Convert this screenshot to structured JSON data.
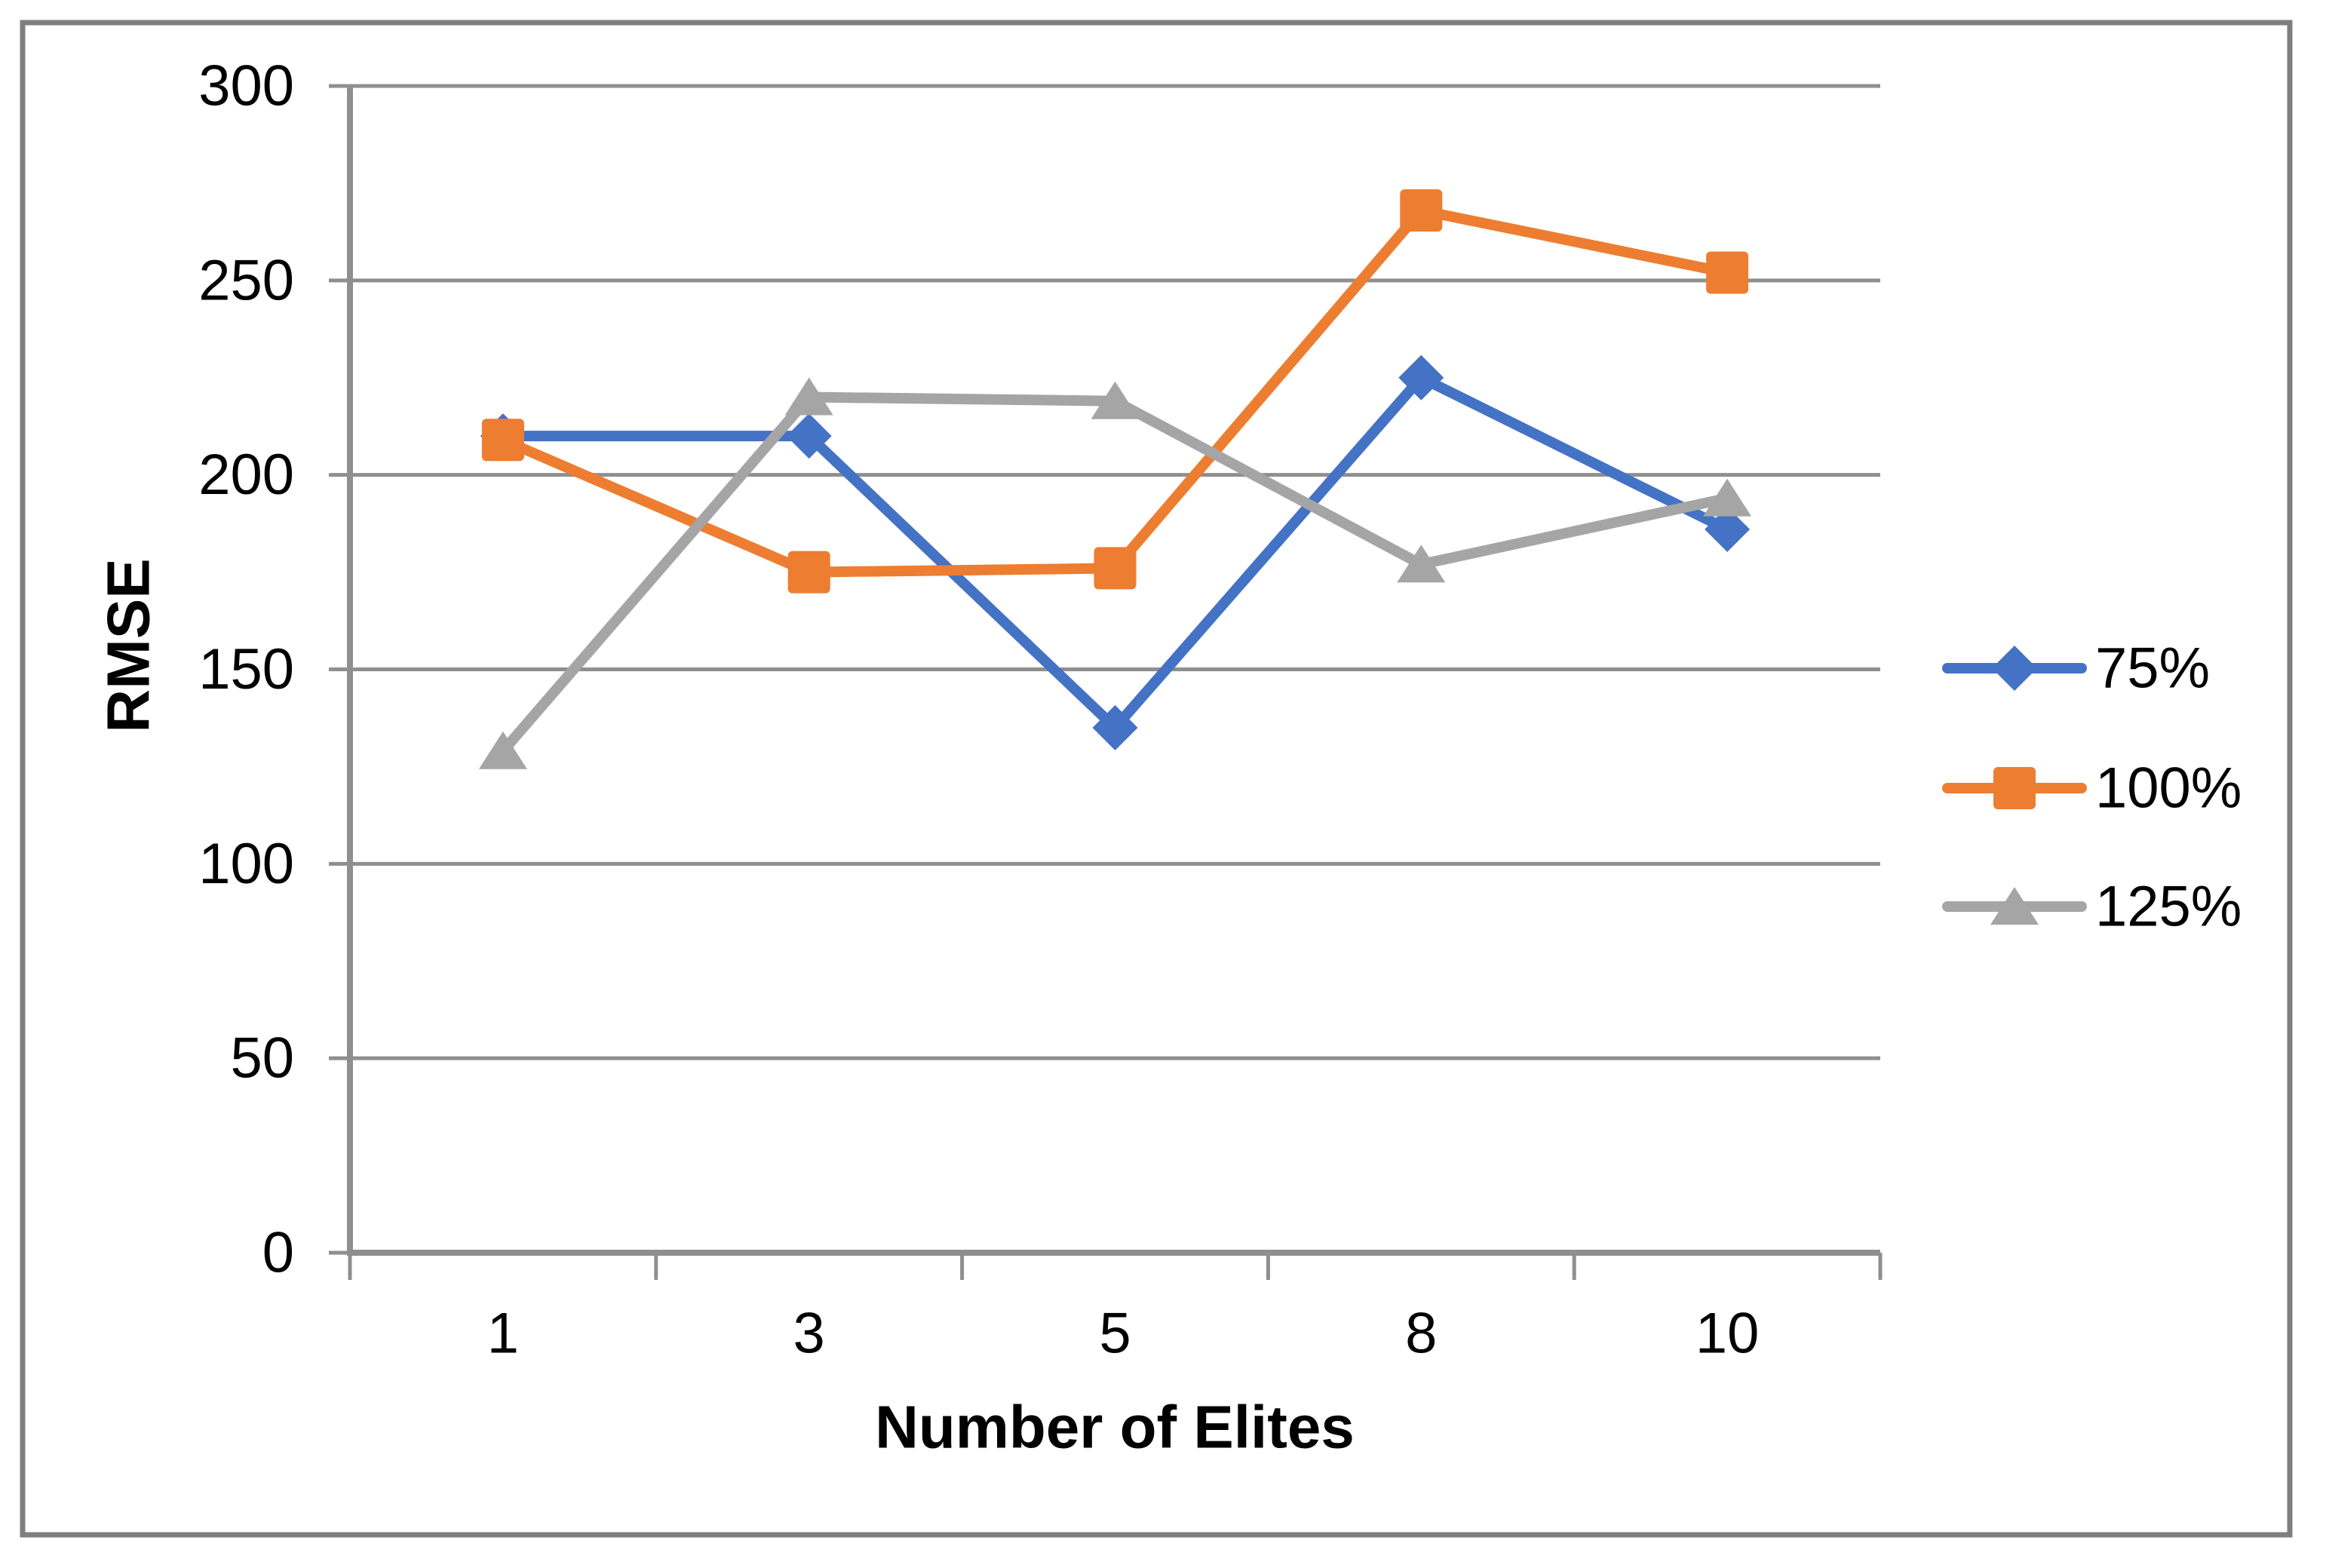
{
  "chart_data": {
    "type": "line",
    "xlabel": "Number of Elites",
    "ylabel": "RMSE",
    "categories": [
      "1",
      "3",
      "5",
      "8",
      "10"
    ],
    "y_ticks": [
      0,
      50,
      100,
      150,
      200,
      250,
      300
    ],
    "ylim": [
      0,
      300
    ],
    "grid": "horizontal",
    "legend_position": "right",
    "series": [
      {
        "name": "75%",
        "marker": "diamond",
        "color": "#4472C4",
        "values": [
          210,
          210,
          135,
          225,
          186
        ]
      },
      {
        "name": "100%",
        "marker": "square",
        "color": "#ED7D31",
        "values": [
          209,
          175,
          176,
          268,
          252
        ]
      },
      {
        "name": "125%",
        "marker": "triangle",
        "color": "#A5A5A5",
        "values": [
          129,
          220,
          219,
          177,
          194
        ]
      }
    ]
  },
  "figure": {
    "background": "#FFFFFF",
    "border_color": "#7F7F7F",
    "gridline_color": "#8F8F8F",
    "axis_color": "#8F8F8F",
    "text_color": "#000000"
  }
}
